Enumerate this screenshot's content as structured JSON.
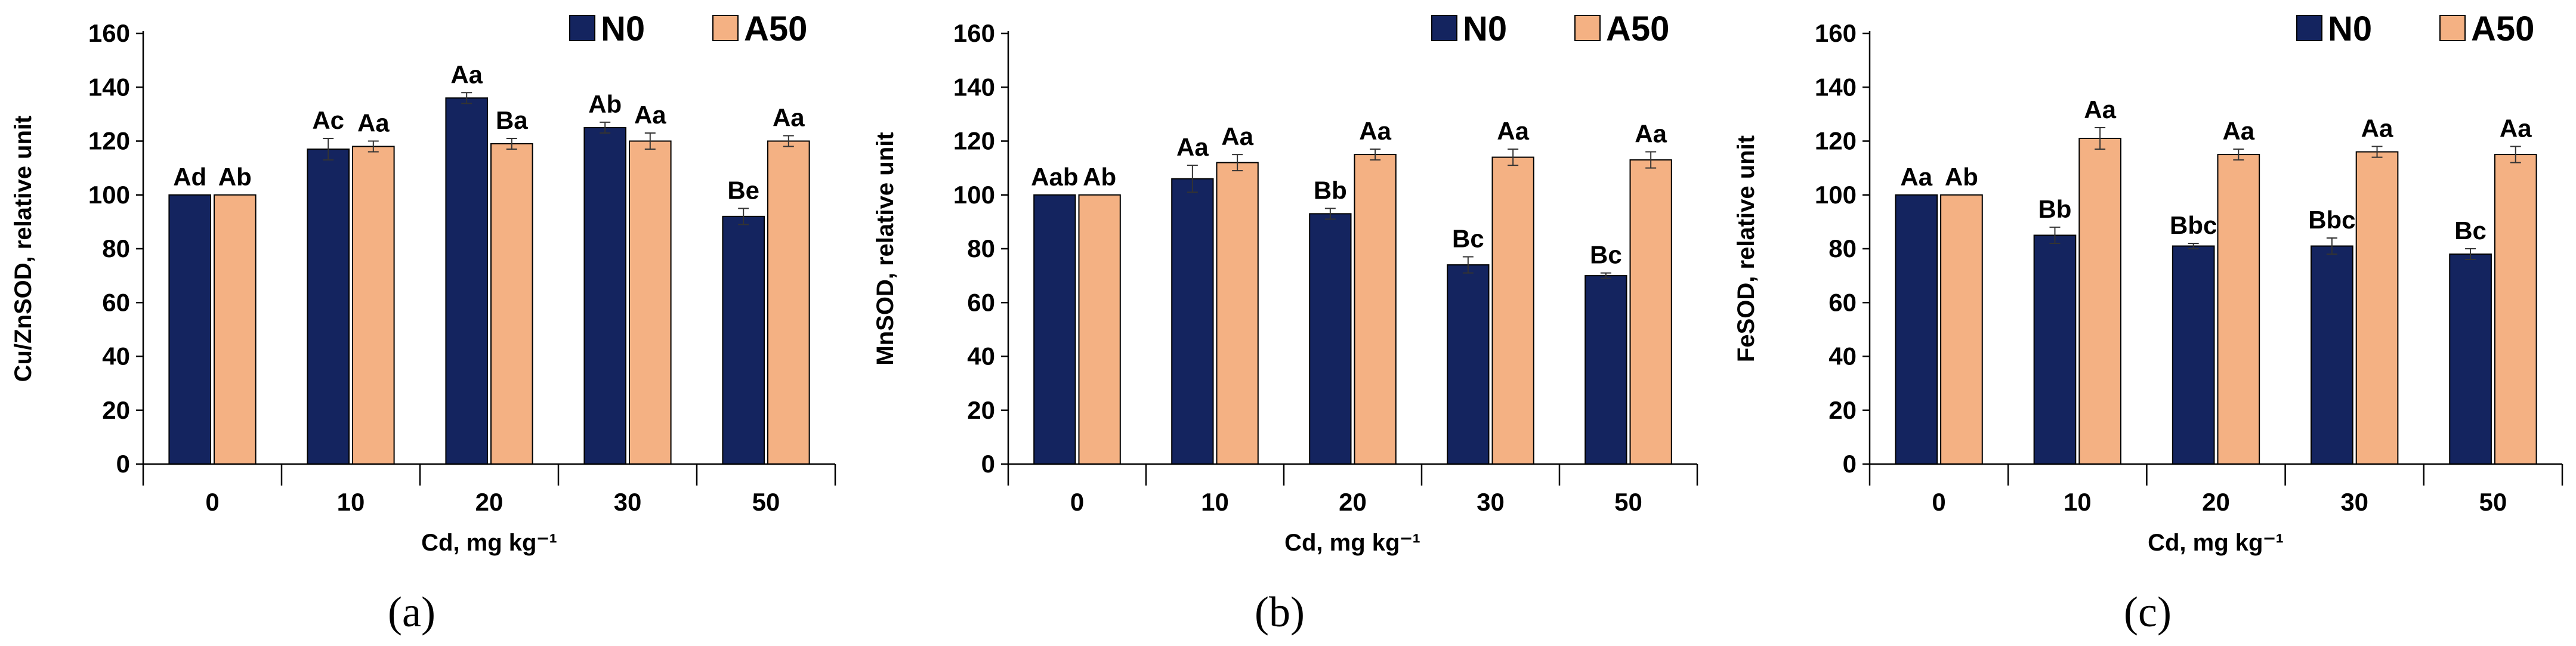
{
  "colors": {
    "N0": "#14245f",
    "A50": "#f4b183",
    "axis": "#000000"
  },
  "chart_data": [
    {
      "type": "bar",
      "panel_label": "(a)",
      "ylabel": "Cu/ZnSOD, relative unit",
      "xlabel": "Cd, mg kg⁻¹",
      "categories": [
        "0",
        "10",
        "20",
        "30",
        "50"
      ],
      "ylim": [
        0,
        160
      ],
      "yticks": [
        0,
        20,
        40,
        60,
        80,
        100,
        120,
        140,
        160
      ],
      "legend_position": "top-right",
      "series": [
        {
          "name": "N0",
          "values": [
            100,
            117,
            136,
            125,
            92
          ],
          "errors": [
            0,
            4,
            2,
            2,
            3
          ],
          "labels": [
            "Ad",
            "Ac",
            "Aa",
            "Ab",
            "Be"
          ]
        },
        {
          "name": "A50",
          "values": [
            100,
            118,
            119,
            120,
            120
          ],
          "errors": [
            0,
            2,
            2,
            3,
            2
          ],
          "labels": [
            "Ab",
            "Aa",
            "Ba",
            "Aa",
            "Aa"
          ]
        }
      ]
    },
    {
      "type": "bar",
      "panel_label": "(b)",
      "ylabel": "MnSOD, relative unit",
      "xlabel": "Cd, mg kg⁻¹",
      "categories": [
        "0",
        "10",
        "20",
        "30",
        "50"
      ],
      "ylim": [
        0,
        160
      ],
      "yticks": [
        0,
        20,
        40,
        60,
        80,
        100,
        120,
        140,
        160
      ],
      "legend_position": "top-right",
      "series": [
        {
          "name": "N0",
          "values": [
            100,
            106,
            93,
            74,
            70
          ],
          "errors": [
            0,
            5,
            2,
            3,
            1
          ],
          "labels": [
            "Aab",
            "Aa",
            "Bb",
            "Bc",
            "Bc"
          ]
        },
        {
          "name": "A50",
          "values": [
            100,
            112,
            115,
            114,
            113
          ],
          "errors": [
            0,
            3,
            2,
            3,
            3
          ],
          "labels": [
            "Ab",
            "Aa",
            "Aa",
            "Aa",
            "Aa"
          ]
        }
      ]
    },
    {
      "type": "bar",
      "panel_label": "(c)",
      "ylabel": "FeSOD, relative unit",
      "xlabel": "Cd, mg kg⁻¹",
      "categories": [
        "0",
        "10",
        "20",
        "30",
        "50"
      ],
      "ylim": [
        0,
        160
      ],
      "yticks": [
        0,
        20,
        40,
        60,
        80,
        100,
        120,
        140,
        160
      ],
      "legend_position": "top-right",
      "series": [
        {
          "name": "N0",
          "values": [
            100,
            85,
            81,
            81,
            78
          ],
          "errors": [
            0,
            3,
            1,
            3,
            2
          ],
          "labels": [
            "Aa",
            "Bb",
            "Bbc",
            "Bbc",
            "Bc"
          ]
        },
        {
          "name": "A50",
          "values": [
            100,
            121,
            115,
            116,
            115
          ],
          "errors": [
            0,
            4,
            2,
            2,
            3
          ],
          "labels": [
            "Ab",
            "Aa",
            "Aa",
            "Aa",
            "Aa"
          ]
        }
      ]
    }
  ]
}
